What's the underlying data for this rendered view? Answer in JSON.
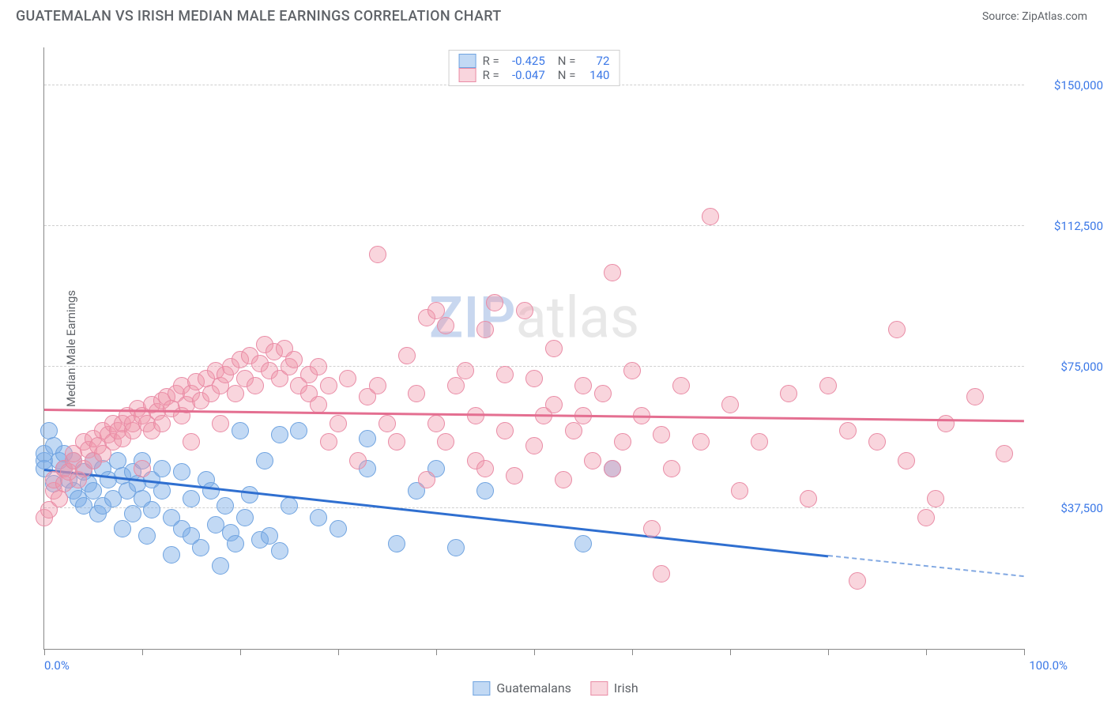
{
  "title": "GUATEMALAN VS IRISH MEDIAN MALE EARNINGS CORRELATION CHART",
  "source": "Source: ZipAtlas.com",
  "watermark": {
    "text1": "ZIP",
    "text2": "atlas",
    "color1": "#c8d7ef",
    "color2": "#e8e8e8"
  },
  "ylabel": "Median Male Earnings",
  "chart": {
    "type": "scatter",
    "xlim": [
      0,
      100
    ],
    "ylim": [
      0,
      160000
    ],
    "xticks": [
      0,
      10,
      20,
      30,
      40,
      50,
      60,
      70,
      80,
      90,
      100
    ],
    "yticks": [
      37500,
      75000,
      112500,
      150000
    ],
    "ytick_labels": [
      "$37,500",
      "$75,000",
      "$112,500",
      "$150,000"
    ],
    "xlim_labels": [
      "0.0%",
      "100.0%"
    ],
    "background_color": "#ffffff",
    "grid_color": "#d0d0d0",
    "axis_color": "#888888",
    "tick_font_color": "#3b78e7",
    "label_font_color": "#5f6368"
  },
  "series": [
    {
      "name": "Guatemalans",
      "fill": "rgba(120,170,230,0.45)",
      "stroke": "#6fa3e0",
      "trend_color": "#2f6fd0",
      "r_value": "-0.425",
      "n_value": "72",
      "trend": {
        "x1": 0,
        "y1": 48000,
        "x2": 80,
        "y2": 25000,
        "dash_from_x": 80,
        "x3": 100,
        "y3": 19500
      },
      "marker_radius": 11,
      "points": [
        [
          0,
          50000
        ],
        [
          0,
          52000
        ],
        [
          0.5,
          58000
        ],
        [
          0,
          48000
        ],
        [
          1,
          54000
        ],
        [
          1,
          44000
        ],
        [
          1.5,
          50000
        ],
        [
          2,
          52000
        ],
        [
          2,
          48000
        ],
        [
          2.5,
          45000
        ],
        [
          3,
          42000
        ],
        [
          3,
          50000
        ],
        [
          3.5,
          40000
        ],
        [
          4,
          47000
        ],
        [
          4,
          38000
        ],
        [
          4.5,
          44000
        ],
        [
          5,
          42000
        ],
        [
          5,
          50000
        ],
        [
          5.5,
          36000
        ],
        [
          6,
          48000
        ],
        [
          6,
          38000
        ],
        [
          6.5,
          45000
        ],
        [
          7,
          40000
        ],
        [
          7.5,
          50000
        ],
        [
          8,
          46000
        ],
        [
          8,
          32000
        ],
        [
          8.5,
          42000
        ],
        [
          9,
          36000
        ],
        [
          9,
          47000
        ],
        [
          9.5,
          44000
        ],
        [
          10,
          40000
        ],
        [
          10,
          50000
        ],
        [
          10.5,
          30000
        ],
        [
          11,
          37000
        ],
        [
          11,
          45000
        ],
        [
          12,
          42000
        ],
        [
          12,
          48000
        ],
        [
          13,
          25000
        ],
        [
          13,
          35000
        ],
        [
          14,
          32000
        ],
        [
          14,
          47000
        ],
        [
          15,
          30000
        ],
        [
          15,
          40000
        ],
        [
          16,
          27000
        ],
        [
          16.5,
          45000
        ],
        [
          17,
          42000
        ],
        [
          17.5,
          33000
        ],
        [
          18,
          22000
        ],
        [
          18.5,
          38000
        ],
        [
          19,
          31000
        ],
        [
          19.5,
          28000
        ],
        [
          20,
          58000
        ],
        [
          20.5,
          35000
        ],
        [
          21,
          41000
        ],
        [
          22,
          29000
        ],
        [
          22.5,
          50000
        ],
        [
          23,
          30000
        ],
        [
          24,
          57000
        ],
        [
          24,
          26000
        ],
        [
          25,
          38000
        ],
        [
          26,
          58000
        ],
        [
          28,
          35000
        ],
        [
          30,
          32000
        ],
        [
          33,
          48000
        ],
        [
          33,
          56000
        ],
        [
          36,
          28000
        ],
        [
          38,
          42000
        ],
        [
          40,
          48000
        ],
        [
          42,
          27000
        ],
        [
          45,
          42000
        ],
        [
          55,
          28000
        ],
        [
          58,
          48000
        ]
      ]
    },
    {
      "name": "Irish",
      "fill": "rgba(240,150,170,0.40)",
      "stroke": "#e98ba5",
      "trend_color": "#e46f91",
      "r_value": "-0.047",
      "n_value": "140",
      "trend": {
        "x1": 0,
        "y1": 64000,
        "x2": 100,
        "y2": 61000
      },
      "marker_radius": 11,
      "points": [
        [
          0,
          35000
        ],
        [
          0.5,
          37000
        ],
        [
          1,
          42000
        ],
        [
          1,
          45000
        ],
        [
          1.5,
          40000
        ],
        [
          2,
          48000
        ],
        [
          2,
          44000
        ],
        [
          2.5,
          47000
        ],
        [
          3,
          50000
        ],
        [
          3,
          52000
        ],
        [
          3.5,
          45000
        ],
        [
          4,
          55000
        ],
        [
          4,
          48000
        ],
        [
          4.5,
          53000
        ],
        [
          5,
          50000
        ],
        [
          5,
          56000
        ],
        [
          5.5,
          54000
        ],
        [
          6,
          58000
        ],
        [
          6,
          52000
        ],
        [
          6.5,
          57000
        ],
        [
          7,
          60000
        ],
        [
          7,
          55000
        ],
        [
          7.5,
          58000
        ],
        [
          8,
          56000
        ],
        [
          8,
          60000
        ],
        [
          8.5,
          62000
        ],
        [
          9,
          58000
        ],
        [
          9,
          60000
        ],
        [
          9.5,
          64000
        ],
        [
          10,
          48000
        ],
        [
          10,
          62000
        ],
        [
          10.5,
          60000
        ],
        [
          11,
          65000
        ],
        [
          11,
          58000
        ],
        [
          11.5,
          63000
        ],
        [
          12,
          66000
        ],
        [
          12,
          60000
        ],
        [
          12.5,
          67000
        ],
        [
          13,
          64000
        ],
        [
          13.5,
          68000
        ],
        [
          14,
          62000
        ],
        [
          14,
          70000
        ],
        [
          14.5,
          65000
        ],
        [
          15,
          68000
        ],
        [
          15,
          55000
        ],
        [
          15.5,
          71000
        ],
        [
          16,
          66000
        ],
        [
          16.5,
          72000
        ],
        [
          17,
          68000
        ],
        [
          17.5,
          74000
        ],
        [
          18,
          70000
        ],
        [
          18,
          60000
        ],
        [
          18.5,
          73000
        ],
        [
          19,
          75000
        ],
        [
          19.5,
          68000
        ],
        [
          20,
          77000
        ],
        [
          20.5,
          72000
        ],
        [
          21,
          78000
        ],
        [
          21.5,
          70000
        ],
        [
          22,
          76000
        ],
        [
          22.5,
          81000
        ],
        [
          23,
          74000
        ],
        [
          23.5,
          79000
        ],
        [
          24,
          72000
        ],
        [
          24.5,
          80000
        ],
        [
          25,
          75000
        ],
        [
          25.5,
          77000
        ],
        [
          26,
          70000
        ],
        [
          27,
          73000
        ],
        [
          27,
          68000
        ],
        [
          28,
          65000
        ],
        [
          28,
          75000
        ],
        [
          29,
          55000
        ],
        [
          29,
          70000
        ],
        [
          30,
          60000
        ],
        [
          31,
          72000
        ],
        [
          32,
          50000
        ],
        [
          33,
          67000
        ],
        [
          34,
          105000
        ],
        [
          34,
          70000
        ],
        [
          35,
          60000
        ],
        [
          36,
          55000
        ],
        [
          37,
          78000
        ],
        [
          38,
          68000
        ],
        [
          39,
          45000
        ],
        [
          39,
          88000
        ],
        [
          40,
          90000
        ],
        [
          40,
          60000
        ],
        [
          41,
          86000
        ],
        [
          41,
          55000
        ],
        [
          42,
          70000
        ],
        [
          43,
          74000
        ],
        [
          44,
          50000
        ],
        [
          44,
          62000
        ],
        [
          45,
          85000
        ],
        [
          45,
          48000
        ],
        [
          46,
          92000
        ],
        [
          47,
          58000
        ],
        [
          47,
          73000
        ],
        [
          48,
          46000
        ],
        [
          49,
          90000
        ],
        [
          50,
          54000
        ],
        [
          50,
          72000
        ],
        [
          51,
          62000
        ],
        [
          52,
          65000
        ],
        [
          52,
          80000
        ],
        [
          53,
          45000
        ],
        [
          54,
          58000
        ],
        [
          55,
          70000
        ],
        [
          55,
          62000
        ],
        [
          56,
          50000
        ],
        [
          57,
          68000
        ],
        [
          58,
          100000
        ],
        [
          58,
          48000
        ],
        [
          59,
          55000
        ],
        [
          60,
          74000
        ],
        [
          61,
          62000
        ],
        [
          62,
          32000
        ],
        [
          63,
          57000
        ],
        [
          63,
          20000
        ],
        [
          64,
          48000
        ],
        [
          65,
          70000
        ],
        [
          67,
          55000
        ],
        [
          68,
          115000
        ],
        [
          70,
          65000
        ],
        [
          71,
          42000
        ],
        [
          73,
          55000
        ],
        [
          76,
          68000
        ],
        [
          78,
          40000
        ],
        [
          80,
          70000
        ],
        [
          82,
          58000
        ],
        [
          83,
          18000
        ],
        [
          85,
          55000
        ],
        [
          87,
          85000
        ],
        [
          88,
          50000
        ],
        [
          90,
          35000
        ],
        [
          91,
          40000
        ],
        [
          92,
          60000
        ],
        [
          95,
          67000
        ],
        [
          98,
          52000
        ]
      ]
    }
  ],
  "legend_top": {
    "r_label": "R =",
    "n_label": "N ="
  },
  "legend_bottom": [
    {
      "label": "Guatemalans",
      "series_idx": 0
    },
    {
      "label": "Irish",
      "series_idx": 1
    }
  ]
}
